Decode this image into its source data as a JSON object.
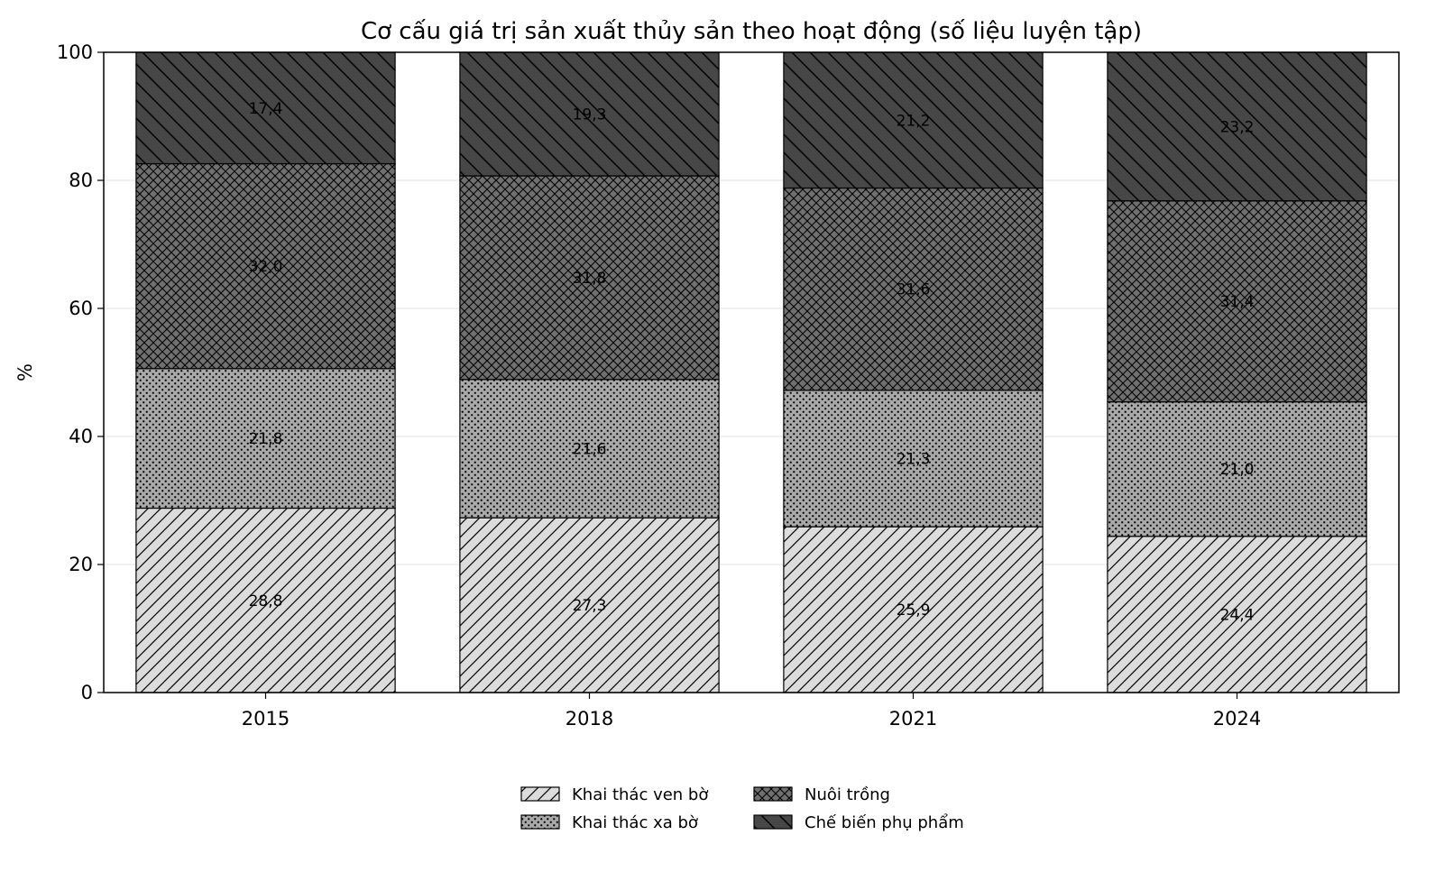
{
  "chart_data": {
    "type": "bar",
    "stacked": true,
    "title": "Cơ cấu giá trị sản xuất thủy sản theo hoạt động (số liệu luyện tập)",
    "xlabel": "",
    "ylabel": "%",
    "ylim": [
      0,
      100
    ],
    "yticks": [
      "0",
      "20",
      "40",
      "60",
      "80",
      "100"
    ],
    "categories": [
      "2015",
      "2018",
      "2021",
      "2024"
    ],
    "grid": "horizontal",
    "legend_position": "bottom-center",
    "series": [
      {
        "name": "Khai thác ven bờ",
        "values": [
          28.8,
          27.3,
          25.9,
          24.4
        ],
        "labels": [
          "28,8",
          "27,3",
          "25,9",
          "24,4"
        ],
        "color": "#dcdcdc",
        "hatch": "diagonal"
      },
      {
        "name": "Khai thác xa bờ",
        "values": [
          21.8,
          21.6,
          21.3,
          21.0
        ],
        "labels": [
          "21,8",
          "21,6",
          "21,3",
          "21,0"
        ],
        "color": "#a9a9a9",
        "hatch": "dots"
      },
      {
        "name": "Nuôi trồng",
        "values": [
          32.0,
          31.8,
          31.6,
          31.4
        ],
        "labels": [
          "32,0",
          "31,8",
          "31,6",
          "31,4"
        ],
        "color": "#707070",
        "hatch": "crosshatch"
      },
      {
        "name": "Chế biến phụ phẩm",
        "values": [
          17.4,
          19.3,
          21.2,
          23.2
        ],
        "labels": [
          "17,4",
          "19,3",
          "21,2",
          "23,2"
        ],
        "color": "#474747",
        "hatch": "backslash"
      }
    ]
  }
}
